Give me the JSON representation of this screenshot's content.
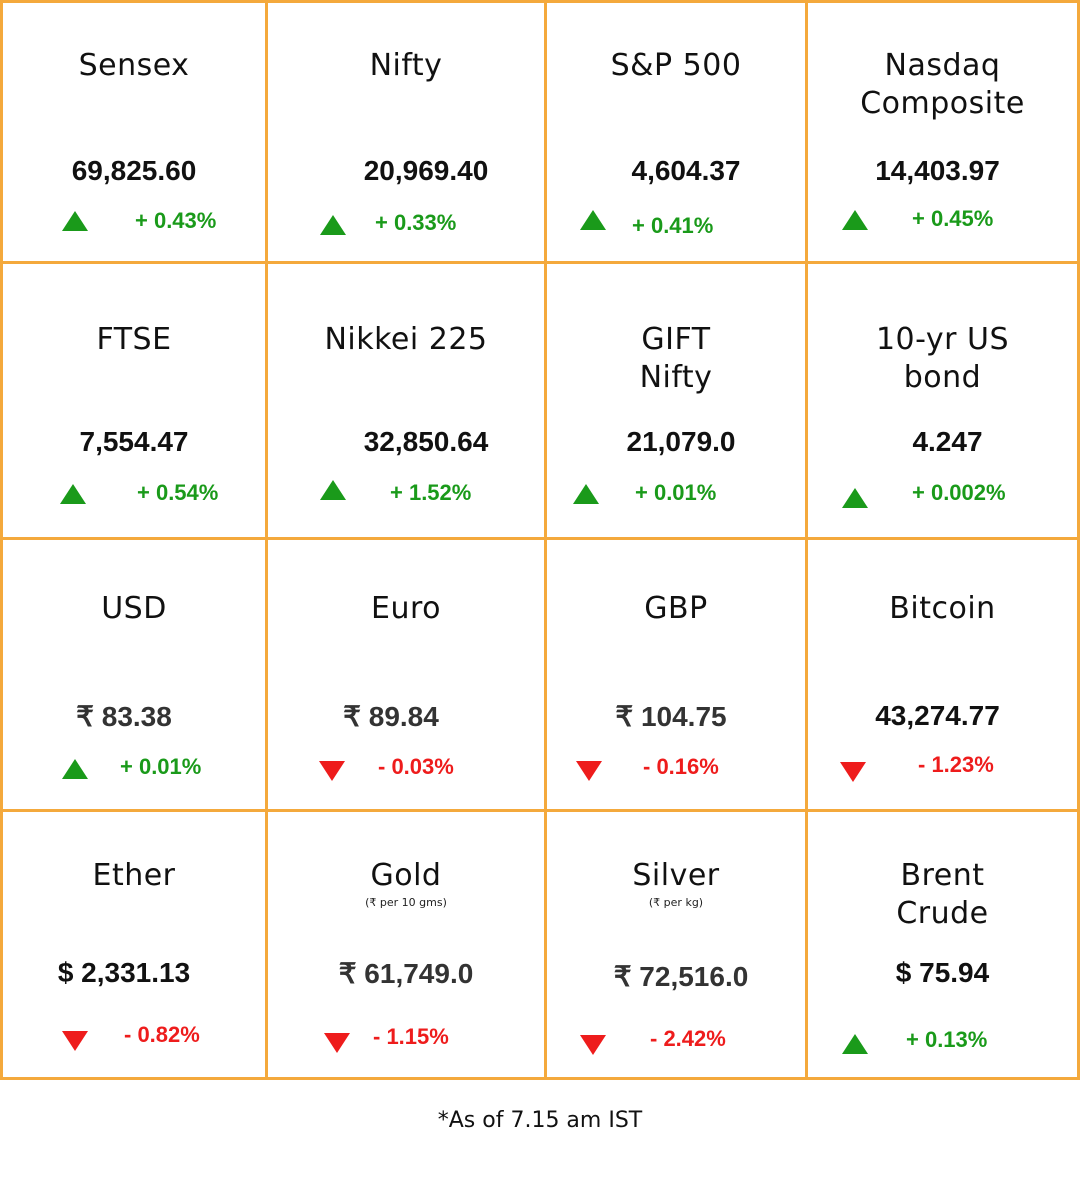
{
  "colors": {
    "border": "#f4a93c",
    "up": "#1a9a1a",
    "down": "#ee1c1c"
  },
  "cells": [
    {
      "name": "Sensex",
      "value": "69,825.60",
      "change": "+ 0.43%",
      "direction": "up"
    },
    {
      "name": "Nifty",
      "value": "20,969.40",
      "change": "+ 0.33%",
      "direction": "up"
    },
    {
      "name": "S&P 500",
      "value": "4,604.37",
      "change": "+ 0.41%",
      "direction": "up"
    },
    {
      "name": "Nasdaq\nComposite",
      "value": "14,403.97",
      "change": "+ 0.45%",
      "direction": "up"
    },
    {
      "name": "FTSE",
      "value": "7,554.47",
      "change": "+ 0.54%",
      "direction": "up"
    },
    {
      "name": "Nikkei 225",
      "value": "32,850.64",
      "change": "+ 1.52%",
      "direction": "up"
    },
    {
      "name": "GIFT\nNifty",
      "value": "21,079.0",
      "change": "+ 0.01%",
      "direction": "up"
    },
    {
      "name": "10-yr US\nbond",
      "value": "4.247",
      "change": "+ 0.002%",
      "direction": "up"
    },
    {
      "name": "USD",
      "value": "₹ 83.38",
      "change": "+ 0.01%",
      "direction": "up"
    },
    {
      "name": "Euro",
      "value": "₹ 89.84",
      "change": "- 0.03%",
      "direction": "down"
    },
    {
      "name": "GBP",
      "value": "₹ 104.75",
      "change": "- 0.16%",
      "direction": "down"
    },
    {
      "name": "Bitcoin",
      "value": "43,274.77",
      "change": "- 1.23%",
      "direction": "down"
    },
    {
      "name": "Ether",
      "value": "$ 2,331.13",
      "change": "- 0.82%",
      "direction": "down"
    },
    {
      "name": "Gold",
      "sub": "(₹ per 10 gms)",
      "value": "₹ 61,749.0",
      "change": "- 1.15%",
      "direction": "down"
    },
    {
      "name": "Silver",
      "sub": "(₹ per kg)",
      "value": "₹ 72,516.0",
      "change": "- 2.42%",
      "direction": "down"
    },
    {
      "name": "Brent\nCrude",
      "value": "$ 75.94",
      "change": "+ 0.13%",
      "direction": "up"
    }
  ],
  "footnote": "*As of 7.15 am IST"
}
